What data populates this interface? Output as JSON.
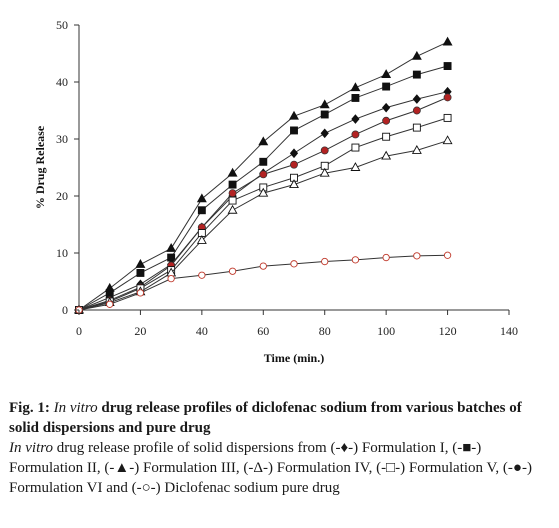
{
  "chart_data": {
    "type": "line",
    "title": "",
    "xlabel": "Time (min.)",
    "ylabel": "% Drug Release",
    "xlim": [
      0,
      140
    ],
    "ylim": [
      0,
      50
    ],
    "xticks": [
      "0",
      "20",
      "40",
      "60",
      "80",
      "100",
      "120",
      "140"
    ],
    "yticks": [
      "0",
      "10",
      "20",
      "30",
      "40",
      "50"
    ],
    "grid": false,
    "legend": "none",
    "x": [
      0,
      10,
      20,
      30,
      40,
      50,
      60,
      70,
      80,
      90,
      100,
      110,
      120
    ],
    "series": [
      {
        "marker": "triangle-filled",
        "values": [
          0,
          3.8,
          8.0,
          10.8,
          19.5,
          24.0,
          29.5,
          34.0,
          36.0,
          39.0,
          41.3,
          44.5,
          47.0
        ]
      },
      {
        "marker": "square-filled",
        "values": [
          0,
          3.0,
          6.5,
          9.2,
          17.5,
          22.0,
          26.0,
          31.5,
          34.3,
          37.2,
          39.2,
          41.3,
          42.8
        ]
      },
      {
        "marker": "diamond-filled",
        "values": [
          0,
          2.2,
          4.5,
          8.0,
          14.5,
          20.0,
          24.0,
          27.5,
          31.0,
          33.5,
          35.5,
          37.0,
          38.3
        ]
      },
      {
        "marker": "circle-filled",
        "values": [
          0,
          1.7,
          4.0,
          7.8,
          14.5,
          20.5,
          23.8,
          25.5,
          28.0,
          30.8,
          33.2,
          35.0,
          37.3
        ]
      },
      {
        "marker": "square-open",
        "values": [
          0,
          1.5,
          3.8,
          7.0,
          13.5,
          19.2,
          21.5,
          23.2,
          25.3,
          28.5,
          30.4,
          32.0,
          33.7
        ]
      },
      {
        "marker": "triangle-open",
        "values": [
          0,
          1.3,
          3.2,
          6.5,
          12.2,
          17.5,
          20.5,
          22.0,
          24.0,
          25.0,
          27.0,
          28.0,
          29.7
        ]
      },
      {
        "marker": "circle-open",
        "values": [
          0,
          1.0,
          3.0,
          5.5,
          6.1,
          6.8,
          7.7,
          8.1,
          8.5,
          8.8,
          9.2,
          9.5,
          9.6
        ]
      }
    ],
    "colors": {
      "axis": "#333333",
      "line": "#333333",
      "marker_fill": "#111111",
      "circle_fill": "#b22222",
      "circle_open": "#c0392b"
    }
  },
  "caption": {
    "fig_label": "Fig. 1: ",
    "fig_italic": "In vitro",
    "fig_rest": " drug release profiles of diclofenac sodium from various batches of solid dispersions and pure drug",
    "desc_italic": "In vitro",
    "desc_rest": " drug release profile of solid dispersions from (-♦-) Formulation I, (-■-) Formulation II, (-▲-) Formulation III, (-Δ-) Formulation IV, (-□-) Formulation V, (-●-) Formulation VI and (-○-) Diclofenac sodium pure drug"
  }
}
